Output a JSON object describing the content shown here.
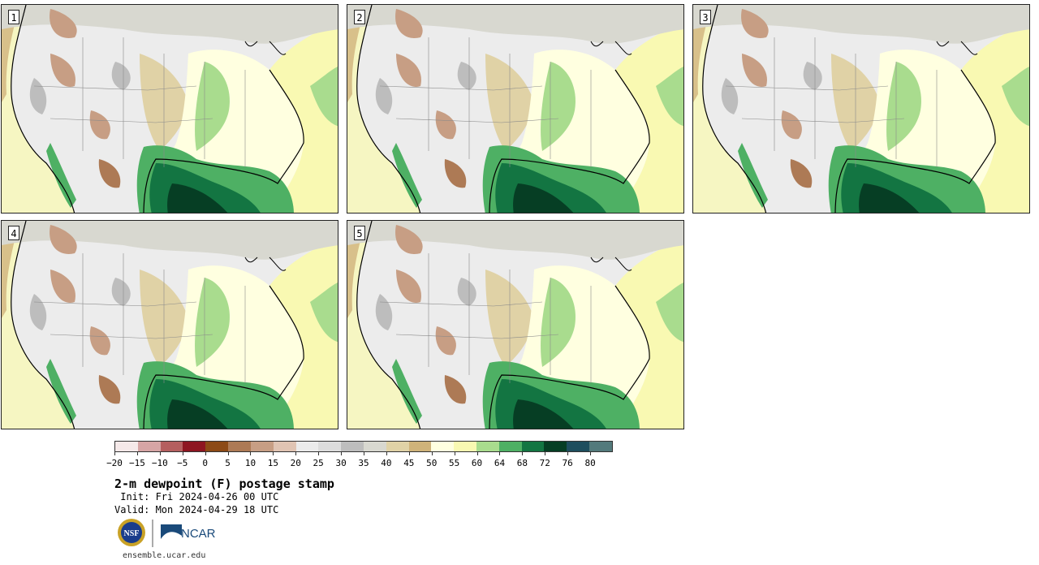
{
  "panels": [
    {
      "label": "1"
    },
    {
      "label": "2"
    },
    {
      "label": "3"
    },
    {
      "label": "4"
    },
    {
      "label": "5"
    }
  ],
  "colorbar": {
    "colors": [
      "#f5e9e9",
      "#d6a5a5",
      "#b55f5f",
      "#8e1621",
      "#8c4a16",
      "#ad7a55",
      "#c79e84",
      "#e0c4b3",
      "#ebebeb",
      "#dcdcdc",
      "#bdbdbd",
      "#d8d8d0",
      "#e0d2a6",
      "#cfb37a",
      "#ffffe0",
      "#f9f9b2",
      "#a9dc8e",
      "#4eb064",
      "#137542",
      "#063e24",
      "#1e4e5e",
      "#537a7c"
    ],
    "tick_labels": [
      "−20",
      "−15",
      "−10",
      "−5",
      "0",
      "5",
      "10",
      "15",
      "20",
      "25",
      "30",
      "35",
      "40",
      "45",
      "50",
      "55",
      "60",
      "64",
      "68",
      "72",
      "76",
      "80"
    ]
  },
  "title": "2-m dewpoint (F) postage stamp",
  "init_text": " Init: Fri 2024-04-26 00 UTC",
  "valid_text": "Valid: Mon 2024-04-29 18 UTC",
  "logos": {
    "nsf": "NSF",
    "ncar": "NCAR"
  },
  "footer_url": "ensemble.ucar.edu"
}
